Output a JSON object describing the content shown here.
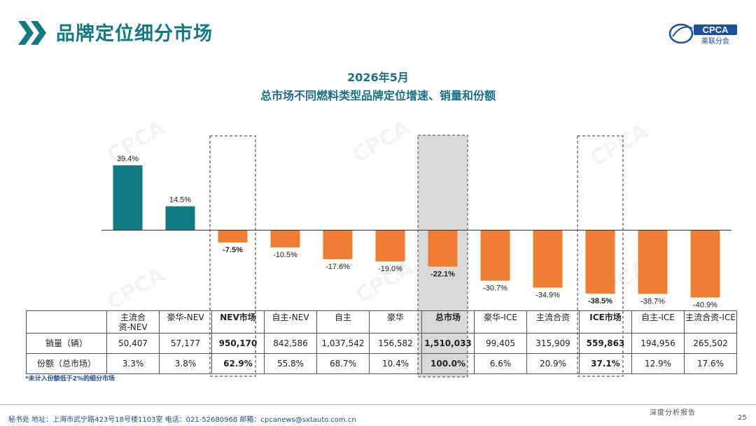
{
  "header": {
    "title": "品牌定位细分市场",
    "logo_text": "CPCA",
    "logo_sub": "乘联分会"
  },
  "chart_data": {
    "type": "bar",
    "title": "2026年5月",
    "subtitle": "总市场不同燃料类型品牌定位增速、销量和份额",
    "categories": [
      "主流合资-NEV",
      "豪华-NEV",
      "NEV市场",
      "自主-NEV",
      "自主",
      "豪华",
      "总市场",
      "豪华-ICE",
      "主流合资",
      "ICE市场",
      "自主-ICE",
      "主流合资-ICE"
    ],
    "values": [
      39.4,
      14.5,
      -7.5,
      -10.5,
      -17.6,
      -19.0,
      -22.1,
      -30.7,
      -34.9,
      -38.5,
      -38.7,
      -40.9
    ],
    "value_labels": [
      "39.4%",
      "14.5%",
      "-7.5%",
      "-10.5%",
      "-17.6%",
      "-19.0%",
      "-22.1%",
      "-30.7%",
      "-34.9%",
      "-38.5%",
      "-38.7%",
      "-40.9%"
    ],
    "bold_labels": [
      false,
      false,
      true,
      false,
      false,
      false,
      true,
      false,
      false,
      true,
      false,
      false
    ],
    "colors": {
      "positive": "#127a83",
      "negative": "#ef7d32"
    },
    "ylim": [
      -42,
      42
    ],
    "highlight": {
      "dashed": [
        2,
        9
      ],
      "shaded": [
        6
      ]
    }
  },
  "table": {
    "header_cells": [
      "",
      "主流合\n资-NEV",
      "豪华-NEV",
      "NEV市场",
      "自主-NEV",
      "自主",
      "豪华",
      "总市场",
      "豪华-ICE",
      "主流合资",
      "ICE市场",
      "自主-ICE",
      "主流合资-ICE"
    ],
    "rows": [
      {
        "label": "销量（辆）",
        "values": [
          "50,407",
          "57,177",
          "950,170",
          "842,586",
          "1,037,542",
          "156,582",
          "1,510,033",
          "99,405",
          "315,909",
          "559,863",
          "194,956",
          "265,502"
        ]
      },
      {
        "label": "份额（总市场）",
        "values": [
          "3.3%",
          "3.8%",
          "62.9%",
          "55.8%",
          "68.7%",
          "10.4%",
          "100.0%",
          "6.6%",
          "20.9%",
          "37.1%",
          "12.9%",
          "17.6%"
        ]
      }
    ],
    "bold_columns": [
      2,
      6,
      9
    ]
  },
  "footnote": "*未计入份额低于2%的细分市场",
  "footer": {
    "address": "秘书处   地址：上海市武宁路423号18号楼1103室  电话：021-52680968   邮箱：cpcanews@sxtauto.com.cn",
    "report_label": "深度分析报告",
    "page_number": "25"
  }
}
